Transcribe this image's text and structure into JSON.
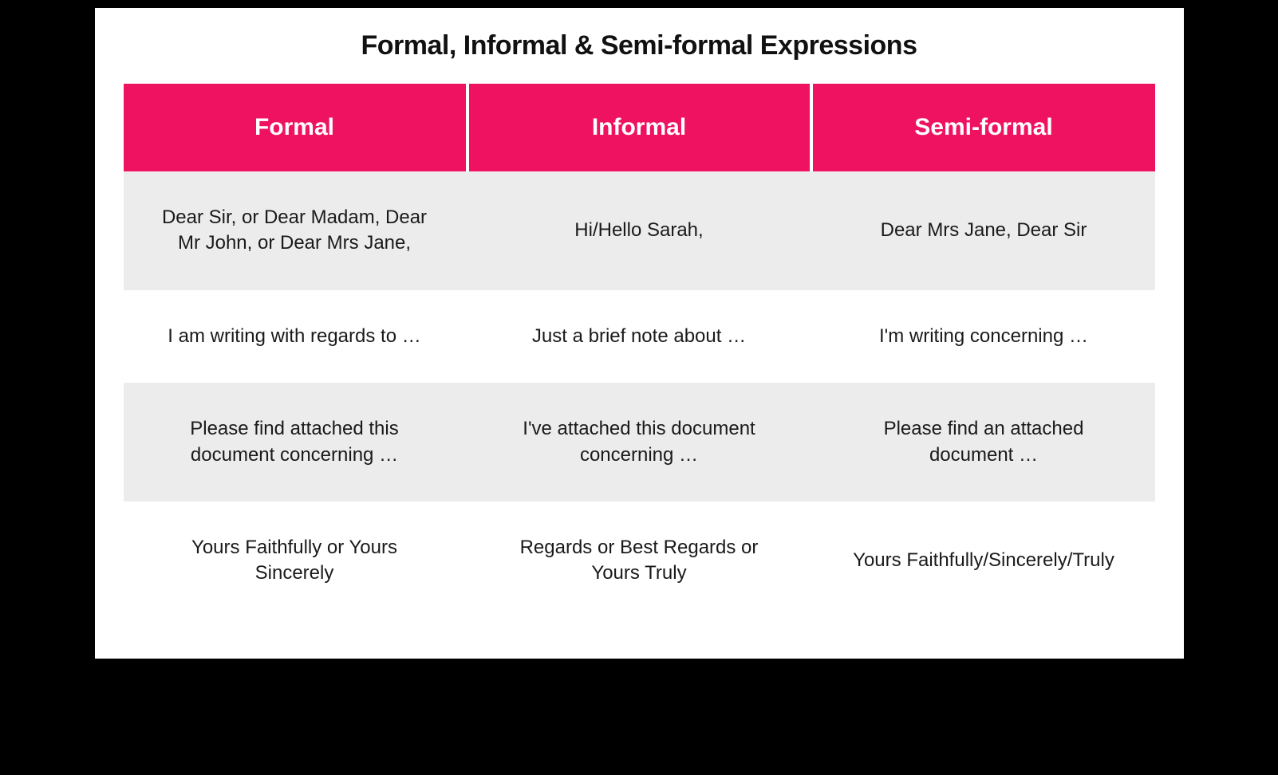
{
  "title": "Formal, Informal & Semi-formal  Expressions",
  "table": {
    "columns": [
      "Formal",
      "Informal",
      "Semi-formal"
    ],
    "rows": [
      [
        "Dear Sir, or Dear Madam, Dear Mr John, or Dear Mrs Jane,",
        "Hi/Hello Sarah,",
        "Dear Mrs Jane, Dear Sir"
      ],
      [
        "I am writing with regards to …",
        "Just a brief note about …",
        "I'm writing concerning …"
      ],
      [
        "Please find attached this document concerning …",
        "I've attached this document concerning …",
        "Please find an attached document …"
      ],
      [
        "Yours Faithfully or Yours Sincerely",
        "Regards or Best Regards or Yours Truly",
        "Yours Faithfully/Sincerely/Truly"
      ]
    ],
    "header_bg_color": "#ef1261",
    "header_text_color": "#ffffff",
    "row_alt_bg_color": "#ececec",
    "row_bg_color": "#ffffff",
    "cell_text_color": "#1a1a1a",
    "title_fontsize": 34,
    "header_fontsize": 30,
    "cell_fontsize": 24
  },
  "page_bg_color": "#000000",
  "card_bg_color": "#ffffff"
}
